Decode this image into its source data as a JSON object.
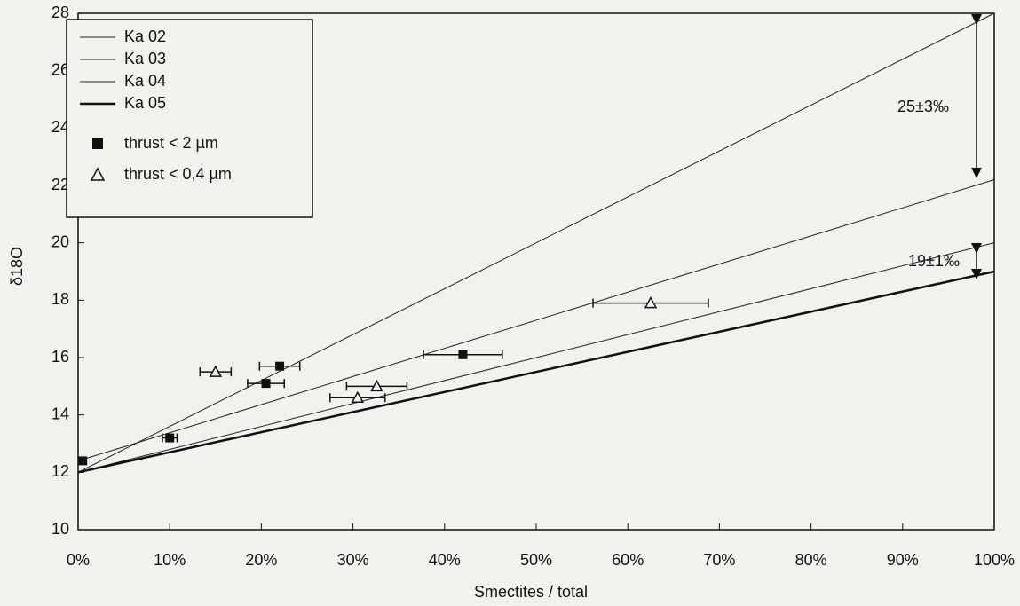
{
  "chart_data": {
    "type": "scatter",
    "x_label": "Smectites / total",
    "y_label": "δ18O",
    "xlim": [
      0,
      100
    ],
    "ylim": [
      10,
      28
    ],
    "xticks": [
      {
        "value": 0,
        "label": "0%"
      },
      {
        "value": 10,
        "label": "10%"
      },
      {
        "value": 20,
        "label": "20%"
      },
      {
        "value": 30,
        "label": "30%"
      },
      {
        "value": 40,
        "label": "40%"
      },
      {
        "value": 50,
        "label": "50%"
      },
      {
        "value": 60,
        "label": "60%"
      },
      {
        "value": 70,
        "label": "70%"
      },
      {
        "value": 80,
        "label": "80%"
      },
      {
        "value": 90,
        "label": "90%"
      },
      {
        "value": 100,
        "label": "100%"
      }
    ],
    "yticks": [
      10,
      12,
      14,
      16,
      18,
      20,
      22,
      24,
      26,
      28
    ],
    "lines": [
      {
        "name": "Ka 02",
        "color": "#222222",
        "width": 1,
        "x": [
          0,
          100
        ],
        "values": [
          12,
          28
        ]
      },
      {
        "name": "Ka 03",
        "color": "#222222",
        "width": 1,
        "x": [
          0,
          100
        ],
        "values": [
          12.4,
          22.2
        ]
      },
      {
        "name": "Ka 04",
        "color": "#222222",
        "width": 1,
        "x": [
          0,
          100
        ],
        "values": [
          12,
          20
        ]
      },
      {
        "name": "Ka 05",
        "color": "#111111",
        "width": 2.5,
        "x": [
          0,
          100
        ],
        "values": [
          12,
          19
        ]
      }
    ],
    "series": [
      {
        "name": "thrust < 2 µm",
        "marker": "square",
        "color": "#111111",
        "x": [
          0.5,
          10,
          20.5,
          22,
          42
        ],
        "values": [
          12.4,
          13.2,
          15.1,
          15.7,
          16.1
        ],
        "xerr": [
          0,
          0.8,
          2,
          2.2,
          4.3
        ]
      },
      {
        "name": "thrust < 0,4 µm",
        "marker": "triangle",
        "color": "#111111",
        "x": [
          15,
          30.5,
          32.6,
          62.5
        ],
        "values": [
          15.5,
          14.6,
          15,
          17.9
        ],
        "xerr": [
          1.7,
          3,
          3.3,
          6.3
        ]
      }
    ],
    "annotations": [
      "25±3‰",
      "19±1‰"
    ]
  }
}
